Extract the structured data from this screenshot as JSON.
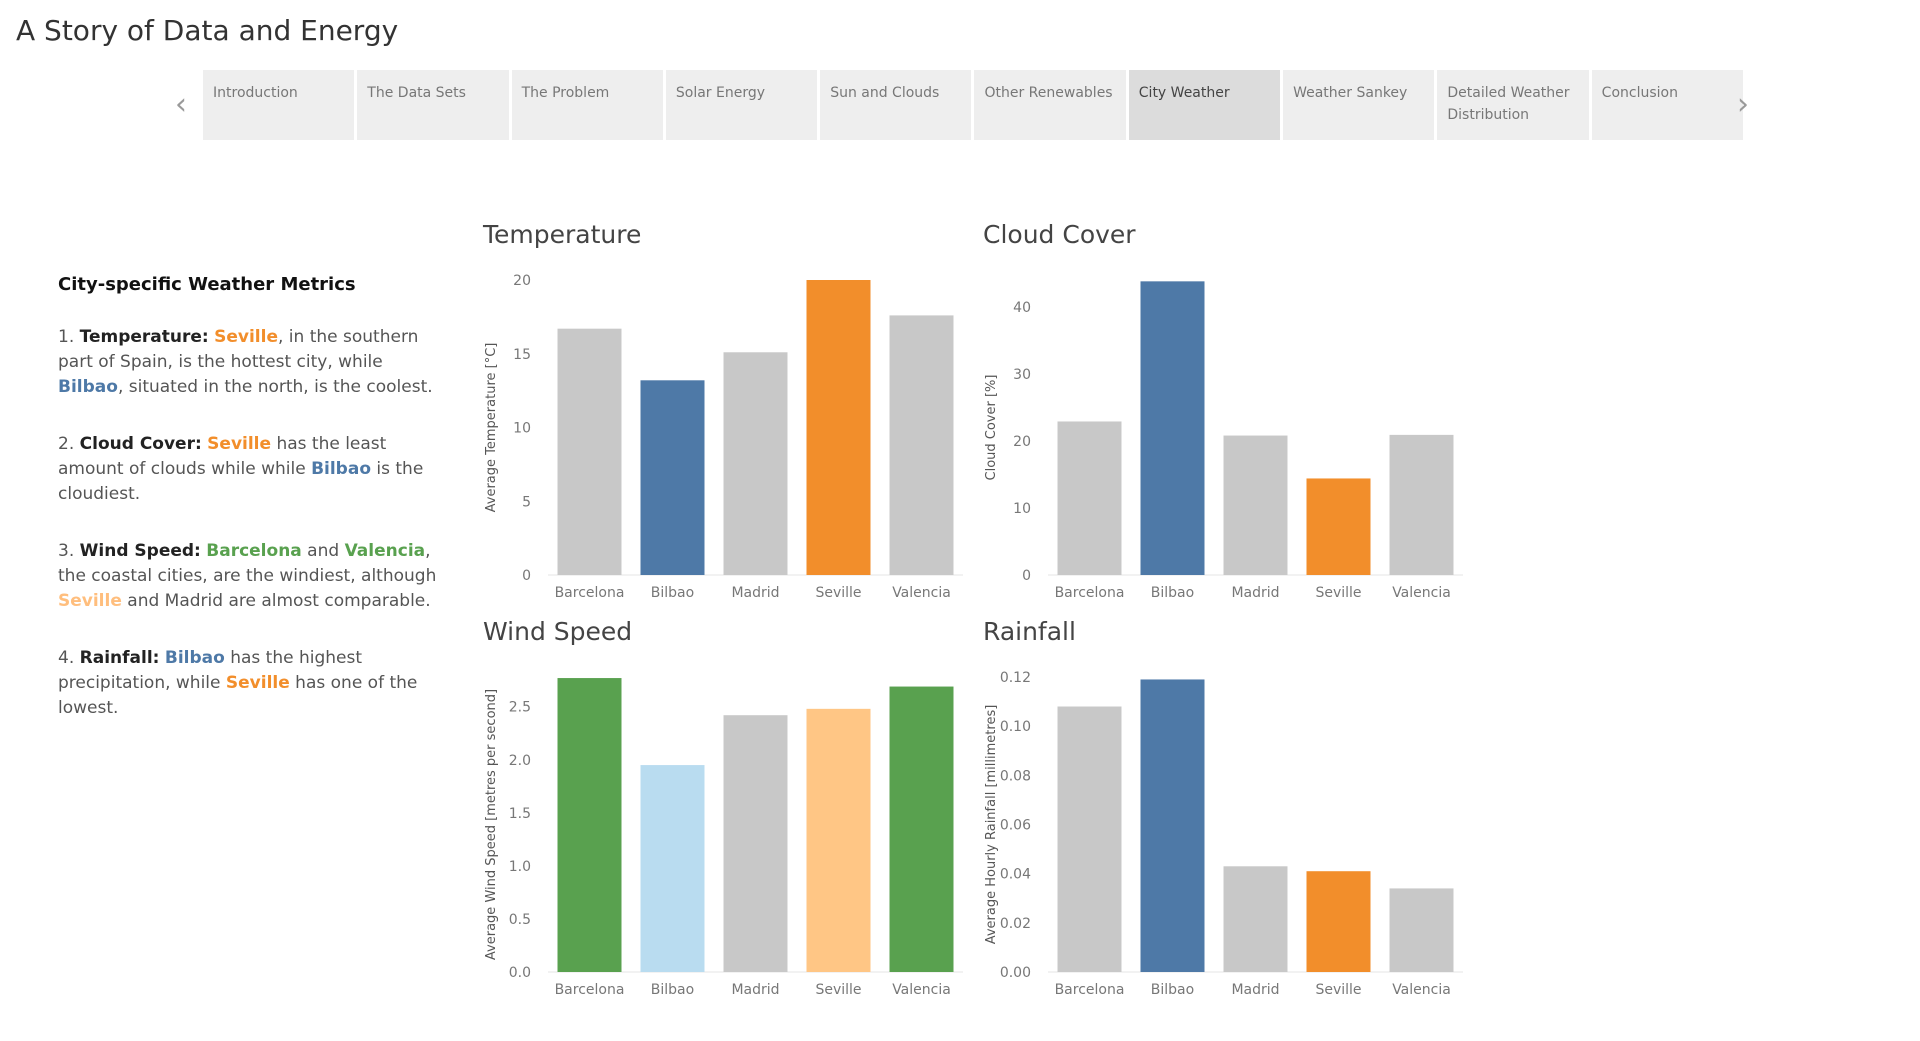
{
  "story_title": "A Story of Data and Energy",
  "nav": {
    "prev_icon": "chevron-left-icon",
    "next_icon": "chevron-right-icon",
    "tabs": [
      {
        "label": "Introduction"
      },
      {
        "label": "The Data Sets"
      },
      {
        "label": "The Problem"
      },
      {
        "label": "Solar Energy"
      },
      {
        "label": "Sun and Clouds"
      },
      {
        "label": "Other Renewables"
      },
      {
        "label": "City Weather"
      },
      {
        "label": "Weather Sankey"
      },
      {
        "label": "Detailed Weather Distribution"
      },
      {
        "label": "Conclusion"
      }
    ],
    "active_tab": "City Weather"
  },
  "sidebar": {
    "heading": "City-specific Weather Metrics",
    "p1": {
      "num": "1.",
      "label": "Temperature:",
      "city_a": "Seville",
      "t1": ", in the southern part of Spain, is the hottest city, while ",
      "city_b": "Bilbao",
      "t2": ", situated in the north, is the coolest."
    },
    "p2": {
      "num": "2.",
      "label": "Cloud Cover:",
      "city_a": "Seville",
      "t1": " has the least amount of clouds while while ",
      "city_b": "Bilbao",
      "t2": " is the cloudiest."
    },
    "p3": {
      "num": "3.",
      "label": "Wind Speed:",
      "city_a": "Barcelona",
      "t1": " and ",
      "city_b": "Valencia",
      "t2": ", the coastal cities, are the windiest, although ",
      "city_c": "Seville",
      "t3": " and Madrid are almost comparable."
    },
    "p4": {
      "num": "4.",
      "label": "Rainfall:",
      "city_a": "Bilbao",
      "t1": " has the highest precipitation, while ",
      "city_b": "Seville",
      "t2": " has one of the lowest."
    }
  },
  "chart_data": [
    {
      "id": "temperature",
      "type": "bar",
      "title": "Temperature",
      "ylabel": "Average Temperature [°C]",
      "categories": [
        "Barcelona",
        "Bilbao",
        "Madrid",
        "Seville",
        "Valencia"
      ],
      "values": [
        16.7,
        13.2,
        15.1,
        20.0,
        17.6
      ],
      "colors": [
        "#c8c8c8",
        "#4e79a7",
        "#c8c8c8",
        "#f28e2b",
        "#c8c8c8"
      ],
      "ylim": [
        0,
        20
      ],
      "yticks": [
        0,
        5,
        10,
        15,
        20
      ],
      "tick_labels": [
        "0",
        "5",
        "10",
        "15",
        "20"
      ]
    },
    {
      "id": "cloud_cover",
      "type": "bar",
      "title": "Cloud Cover",
      "ylabel": "Cloud Cover [%]",
      "categories": [
        "Barcelona",
        "Bilbao",
        "Madrid",
        "Seville",
        "Valencia"
      ],
      "values": [
        22.9,
        43.8,
        20.8,
        14.4,
        20.9
      ],
      "colors": [
        "#c8c8c8",
        "#4e79a7",
        "#c8c8c8",
        "#f28e2b",
        "#c8c8c8"
      ],
      "ylim": [
        0,
        44
      ],
      "yticks": [
        0,
        10,
        20,
        30,
        40
      ],
      "tick_labels": [
        "0",
        "10",
        "20",
        "30",
        "40"
      ]
    },
    {
      "id": "wind_speed",
      "type": "bar",
      "title": "Wind Speed",
      "ylabel": "Average Wind Speed [metres per second]",
      "categories": [
        "Barcelona",
        "Bilbao",
        "Madrid",
        "Seville",
        "Valencia"
      ],
      "values": [
        2.77,
        1.95,
        2.42,
        2.48,
        2.69
      ],
      "colors": [
        "#59a14f",
        "#b9dcf0",
        "#c8c8c8",
        "#ffc685",
        "#59a14f"
      ],
      "ylim": [
        0,
        2.78
      ],
      "yticks": [
        0,
        0.5,
        1.0,
        1.5,
        2.0,
        2.5
      ],
      "tick_labels": [
        "0.0",
        "0.5",
        "1.0",
        "1.5",
        "2.0",
        "2.5"
      ]
    },
    {
      "id": "rainfall",
      "type": "bar",
      "title": "Rainfall",
      "ylabel": "Average Hourly Rainfall [millimetres]",
      "categories": [
        "Barcelona",
        "Bilbao",
        "Madrid",
        "Seville",
        "Valencia"
      ],
      "values": [
        0.108,
        0.119,
        0.043,
        0.041,
        0.034
      ],
      "colors": [
        "#c8c8c8",
        "#4e79a7",
        "#c8c8c8",
        "#f28e2b",
        "#c8c8c8"
      ],
      "ylim": [
        0,
        0.12
      ],
      "yticks": [
        0,
        0.02,
        0.04,
        0.06,
        0.08,
        0.1,
        0.12
      ],
      "tick_labels": [
        "0.00",
        "0.02",
        "0.04",
        "0.06",
        "0.08",
        "0.10",
        "0.12"
      ]
    }
  ]
}
